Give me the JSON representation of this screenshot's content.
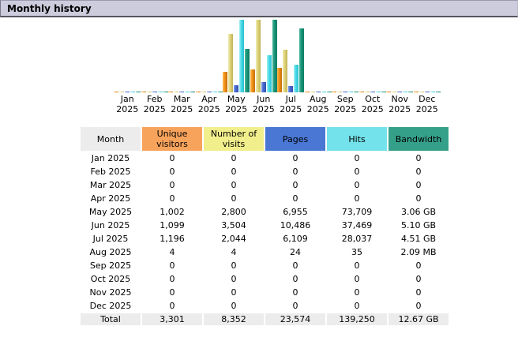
{
  "title_bar": {
    "title": "Monthly history"
  },
  "colors": {
    "title_bg": "#CCCCDD",
    "title_border": "#55555F",
    "header_month_bg": "#ECECEC",
    "header_unique_visitors_bg": "#F8A35C",
    "header_visits_bg": "#F1EE8C",
    "header_pages_bg": "#4A77D4",
    "header_hits_bg": "#73E2EA",
    "header_bandwidth_bg": "#35A08A",
    "bar_unique_visitors": "#EE8E12",
    "bar_visits": "#DDD278",
    "bar_pages": "#4466CC",
    "bar_hits": "#44D9E6",
    "bar_bandwidth": "#179377",
    "total_row_bg": "#ECECEC"
  },
  "chart_data": {
    "type": "bar",
    "title": "Monthly history",
    "categories": [
      "Jan 2025",
      "Feb 2025",
      "Mar 2025",
      "Apr 2025",
      "May 2025",
      "Jun 2025",
      "Jul 2025",
      "Aug 2025",
      "Sep 2025",
      "Oct 2025",
      "Nov 2025",
      "Dec 2025"
    ],
    "series": [
      {
        "name": "Unique visitors",
        "scale_group": "visits",
        "values": [
          0,
          0,
          0,
          0,
          1002,
          1099,
          1196,
          4,
          0,
          0,
          0,
          0
        ]
      },
      {
        "name": "Number of visits",
        "scale_group": "visits",
        "values": [
          0,
          0,
          0,
          0,
          2800,
          3504,
          2044,
          4,
          0,
          0,
          0,
          0
        ]
      },
      {
        "name": "Pages",
        "scale_group": "hits",
        "values": [
          0,
          0,
          0,
          0,
          6955,
          10486,
          6109,
          24,
          0,
          0,
          0,
          0
        ]
      },
      {
        "name": "Hits",
        "scale_group": "hits",
        "values": [
          0,
          0,
          0,
          0,
          73709,
          37469,
          28037,
          35,
          0,
          0,
          0,
          0
        ]
      },
      {
        "name": "Bandwidth (GB)",
        "scale_group": "bandwidth",
        "values": [
          0,
          0,
          0,
          0,
          3.06,
          5.1,
          4.51,
          0.00204,
          0,
          0,
          0,
          0
        ]
      }
    ],
    "xlabel": "",
    "ylabel": "",
    "legend_position": "none",
    "grid": false,
    "scaling_note": "each scale group normalized to its own max (visits: 3504, hits: 73709, bandwidth: 5.10 GB)"
  },
  "table": {
    "headers": [
      "Month",
      "Unique visitors",
      "Number of visits",
      "Pages",
      "Hits",
      "Bandwidth"
    ],
    "rows": [
      [
        "Jan 2025",
        "0",
        "0",
        "0",
        "0",
        "0"
      ],
      [
        "Feb 2025",
        "0",
        "0",
        "0",
        "0",
        "0"
      ],
      [
        "Mar 2025",
        "0",
        "0",
        "0",
        "0",
        "0"
      ],
      [
        "Apr 2025",
        "0",
        "0",
        "0",
        "0",
        "0"
      ],
      [
        "May 2025",
        "1,002",
        "2,800",
        "6,955",
        "73,709",
        "3.06 GB"
      ],
      [
        "Jun 2025",
        "1,099",
        "3,504",
        "10,486",
        "37,469",
        "5.10 GB"
      ],
      [
        "Jul 2025",
        "1,196",
        "2,044",
        "6,109",
        "28,037",
        "4.51 GB"
      ],
      [
        "Aug 2025",
        "4",
        "4",
        "24",
        "35",
        "2.09 MB"
      ],
      [
        "Sep 2025",
        "0",
        "0",
        "0",
        "0",
        "0"
      ],
      [
        "Oct 2025",
        "0",
        "0",
        "0",
        "0",
        "0"
      ],
      [
        "Nov 2025",
        "0",
        "0",
        "0",
        "0",
        "0"
      ],
      [
        "Dec 2025",
        "0",
        "0",
        "0",
        "0",
        "0"
      ]
    ],
    "total_row": [
      "Total",
      "3,301",
      "8,352",
      "23,574",
      "139,250",
      "12.67 GB"
    ]
  }
}
